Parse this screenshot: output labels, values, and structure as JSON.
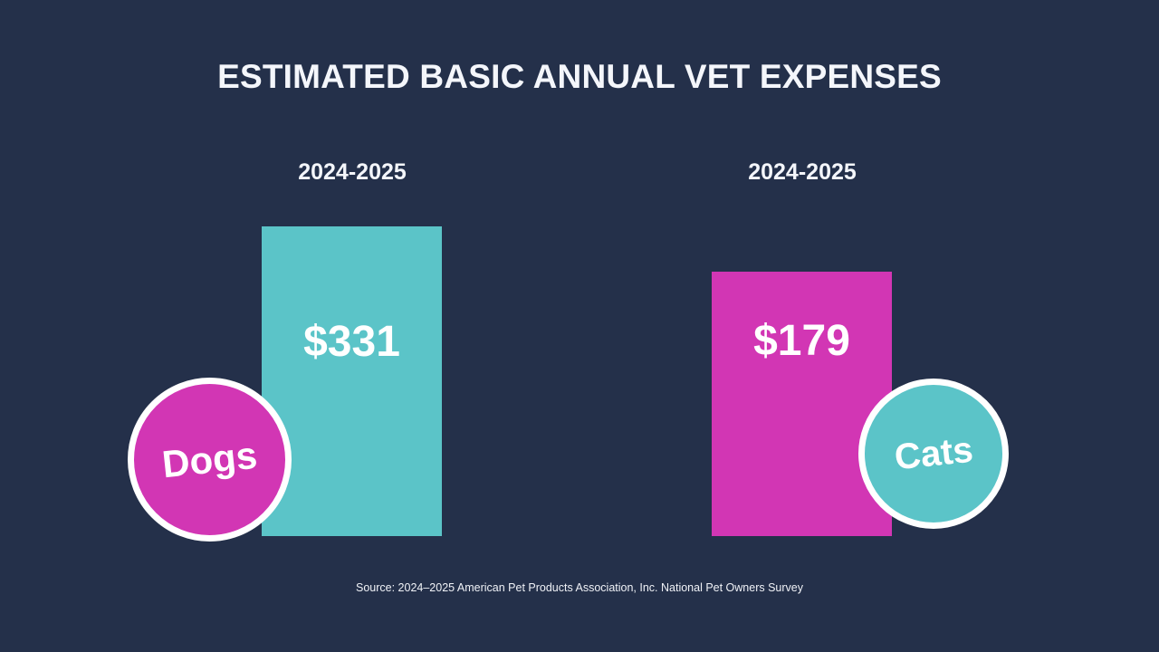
{
  "title": "ESTIMATED BASIC ANNUAL VET EXPENSES",
  "source": "Source: 2024–2025 American Pet Products Association, Inc. National Pet Owners Survey",
  "colors": {
    "background": "#24304a",
    "teal": "#5bc4c8",
    "magenta": "#d236b4",
    "text": "#ffffff"
  },
  "chart_data": {
    "type": "bar",
    "title": "ESTIMATED BASIC ANNUAL VET EXPENSES",
    "categories": [
      "Dogs",
      "Cats"
    ],
    "periods": [
      "2024-2025",
      "2024-2025"
    ],
    "values": [
      331,
      179
    ],
    "value_labels": [
      "$331",
      "$179"
    ],
    "unit": "USD",
    "xlabel": "",
    "ylabel": "",
    "grid": false,
    "legend": "none",
    "bar_colors": [
      "#5bc4c8",
      "#d236b4"
    ],
    "badge_colors": [
      "#d236b4",
      "#5bc4c8"
    ]
  }
}
